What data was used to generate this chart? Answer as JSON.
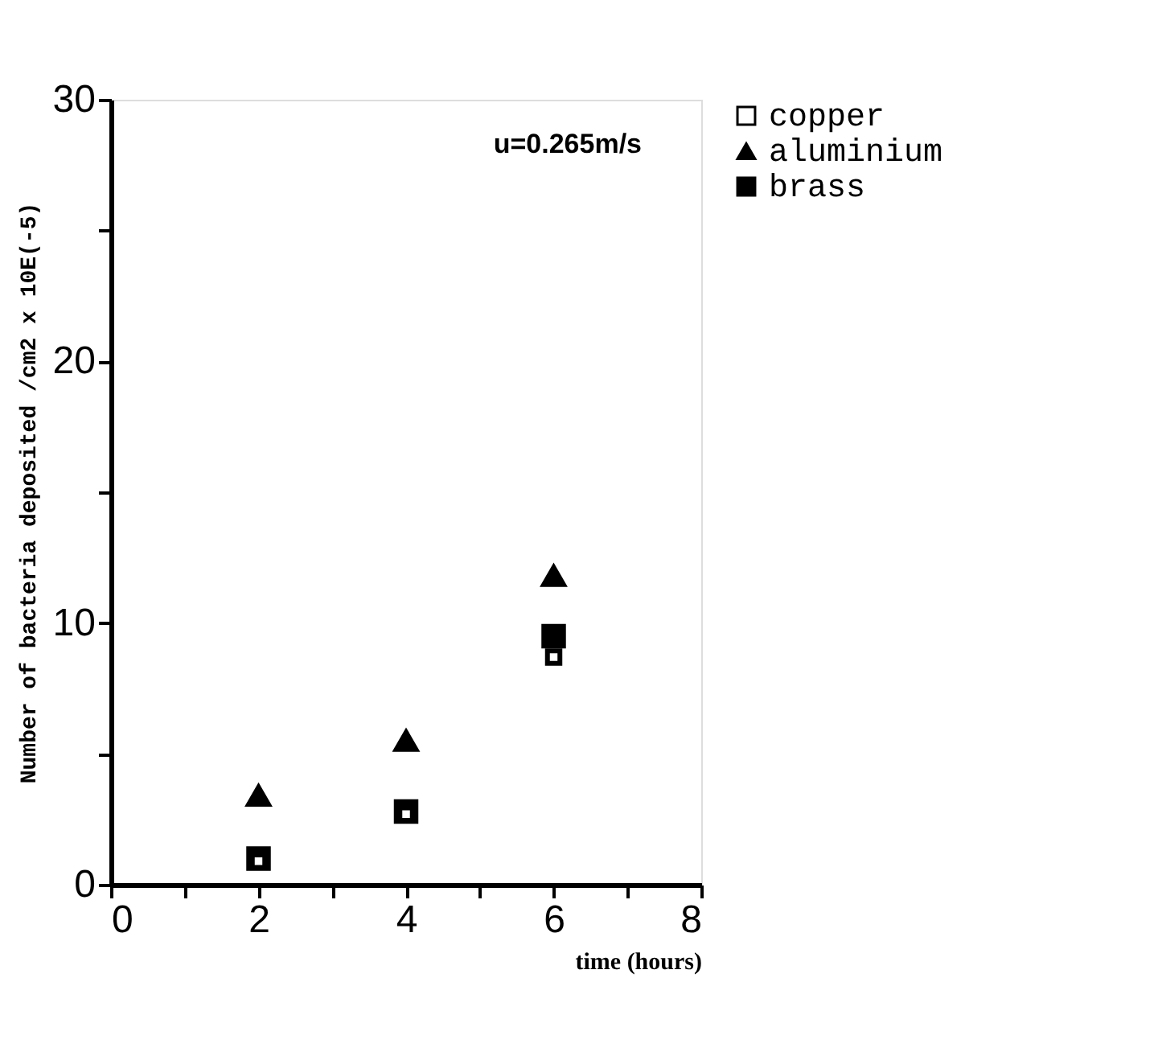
{
  "chart_data": {
    "type": "scatter",
    "x": [
      2,
      4,
      6
    ],
    "series": [
      {
        "name": "copper",
        "color": "#000000",
        "marker": "square",
        "values": [
          0.9,
          2.7,
          8.7
        ]
      },
      {
        "name": "aluminium",
        "color": "#000000",
        "marker": "triangle",
        "values": [
          3.4,
          5.5,
          11.8
        ]
      },
      {
        "name": "brass",
        "color": "#000000",
        "marker": "square",
        "values": [
          1.0,
          2.8,
          9.5
        ]
      }
    ],
    "xlabel": "time  (hours)",
    "ylabel": "Number of bacteria deposited /cm2 x 10E(-5)",
    "xlim": [
      0,
      8
    ],
    "xticks": [
      0,
      {
        "value": 1,
        "label": null
      },
      2,
      {
        "value": 3,
        "label": null
      },
      4,
      {
        "value": 5,
        "label": null
      },
      6,
      {
        "value": 7,
        "label": null
      },
      8
    ],
    "ylim": [
      0,
      30
    ],
    "yticks": [
      0,
      {
        "value": 5,
        "label": null
      },
      10,
      {
        "value": 15,
        "label": null
      },
      20,
      {
        "value": 25,
        "label": null
      },
      30
    ],
    "annotations": [
      "u=0.265m/s"
    ],
    "grid": false,
    "legend": "right"
  }
}
